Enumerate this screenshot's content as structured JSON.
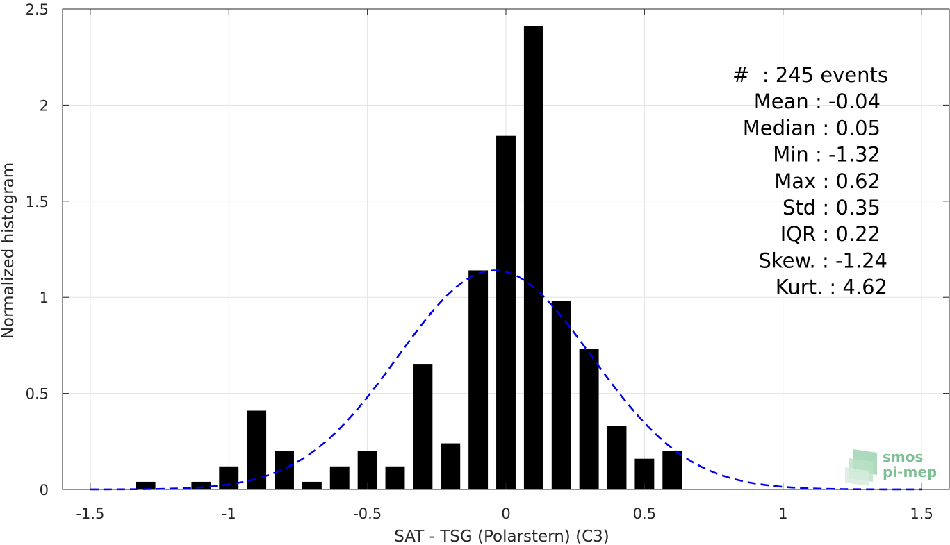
{
  "chart_data": {
    "type": "bar",
    "title": "",
    "xlabel": "SAT - TSG (Polarstern) (C3)",
    "ylabel": "Normalized histogram",
    "xlim": [
      -1.6,
      1.6
    ],
    "ylim": [
      0,
      2.5
    ],
    "grid": true,
    "x_ticks": [
      "-1.5",
      "-1",
      "-0.5",
      "0",
      "0.5",
      "1",
      "1.5"
    ],
    "x_tick_values": [
      -1.5,
      -1,
      -0.5,
      0,
      0.5,
      1,
      1.5
    ],
    "y_ticks": [
      "0",
      "0.5",
      "1",
      "1.5",
      "2",
      "2.5"
    ],
    "y_tick_values": [
      0,
      0.5,
      1,
      1.5,
      2,
      2.5
    ],
    "bar_width": 0.07,
    "bar_color": "#000000",
    "bins": [
      -1.3,
      -1.1,
      -1.0,
      -0.9,
      -0.8,
      -0.7,
      -0.6,
      -0.5,
      -0.4,
      -0.3,
      -0.2,
      -0.1,
      0.0,
      0.1,
      0.2,
      0.3,
      0.4,
      0.5,
      0.6
    ],
    "values": [
      0.04,
      0.04,
      0.12,
      0.41,
      0.2,
      0.04,
      0.12,
      0.2,
      0.12,
      0.65,
      0.24,
      1.14,
      1.84,
      2.41,
      0.98,
      0.73,
      0.33,
      0.16,
      0.2
    ],
    "fit_curve": {
      "type": "gaussian",
      "mean": -0.04,
      "std": 0.35,
      "color": "#0000ee",
      "style": "dashed",
      "x_range": [
        -1.5,
        1.5
      ]
    },
    "stats": [
      "#  : 245 events",
      "Mean : -0.04",
      "Median : 0.05",
      "Min : -1.32",
      "Max : 0.62",
      "Std : 0.35",
      "IQR : 0.22",
      "Skew. : -1.24",
      "Kurt. : 4.62"
    ]
  },
  "logo": {
    "line1": "smos",
    "line2": "pi-mep",
    "color": "#7fbf96"
  }
}
